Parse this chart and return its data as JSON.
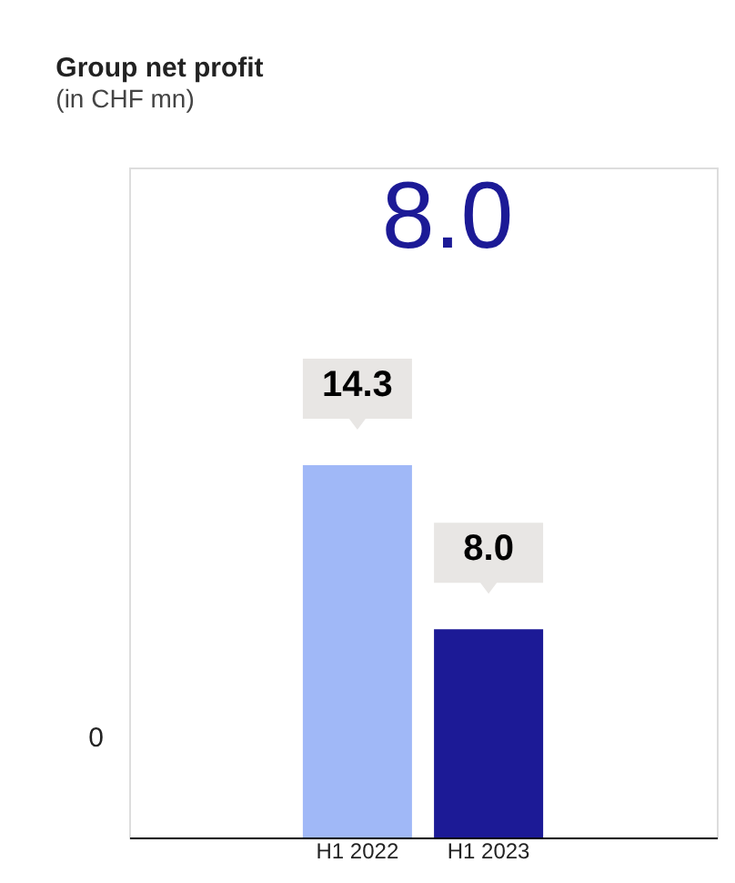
{
  "chart_data": {
    "type": "bar",
    "title": "Group net profit",
    "subtitle": "(in CHF mn)",
    "categories": [
      "H1 2022",
      "H1 2023"
    ],
    "values": [
      14.3,
      8.0
    ],
    "value_labels": [
      "14.3",
      "8.0"
    ],
    "colors": [
      "#a0b8f7",
      "#1c1a96"
    ],
    "annotations": [
      "8.0",
      "0"
    ]
  }
}
